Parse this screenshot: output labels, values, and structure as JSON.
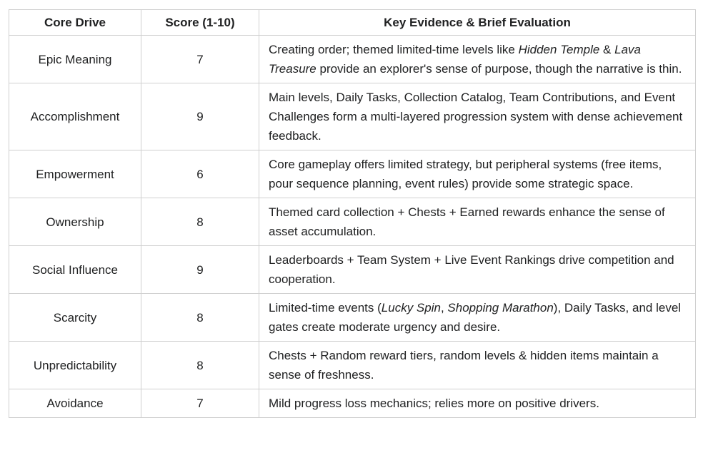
{
  "colors": {
    "border": "#d0d0d0",
    "text": "#202122",
    "background": "#ffffff"
  },
  "table": {
    "headers": [
      {
        "label": "Core Drive"
      },
      {
        "label": "Score (1-10)"
      },
      {
        "label": "Key Evidence & Brief Evaluation"
      }
    ],
    "rows": [
      {
        "core_drive": "Epic Meaning",
        "score": "7",
        "evidence": [
          {
            "text": "Creating order; themed limited-time levels like "
          },
          {
            "text": "Hidden Temple",
            "italic": true
          },
          {
            "text": " & "
          },
          {
            "text": "Lava Treasure",
            "italic": true
          },
          {
            "text": " provide an explorer's sense of purpose, though the narrative is thin."
          }
        ]
      },
      {
        "core_drive": "Accomplishment",
        "score": "9",
        "evidence": [
          {
            "text": "Main levels, Daily Tasks, Collection Catalog, Team Contributions, and Event Challenges form a multi-layered progression system with dense achievement feedback."
          }
        ]
      },
      {
        "core_drive": "Empowerment",
        "score": "6",
        "evidence": [
          {
            "text": "Core gameplay offers limited strategy, but peripheral systems (free items, pour sequence planning, event rules) provide some strategic space."
          }
        ]
      },
      {
        "core_drive": "Ownership",
        "score": "8",
        "evidence": [
          {
            "text": "Themed card collection + Chests + Earned rewards enhance the sense of asset accumulation."
          }
        ]
      },
      {
        "core_drive": "Social Influence",
        "score": "9",
        "evidence": [
          {
            "text": "Leaderboards + Team System + Live Event Rankings drive competition and cooperation."
          }
        ]
      },
      {
        "core_drive": "Scarcity",
        "score": "8",
        "evidence": [
          {
            "text": "Limited-time events ("
          },
          {
            "text": "Lucky Spin",
            "italic": true
          },
          {
            "text": ", "
          },
          {
            "text": "Shopping Marathon",
            "italic": true
          },
          {
            "text": "), Daily Tasks, and level gates create moderate urgency and desire."
          }
        ]
      },
      {
        "core_drive": "Unpredictability",
        "score": "8",
        "evidence": [
          {
            "text": "Chests + Random reward tiers, random levels & hidden items maintain a sense of freshness."
          }
        ]
      },
      {
        "core_drive": "Avoidance",
        "score": "7",
        "evidence": [
          {
            "text": "Mild progress loss mechanics; relies more on positive drivers."
          }
        ]
      }
    ]
  }
}
